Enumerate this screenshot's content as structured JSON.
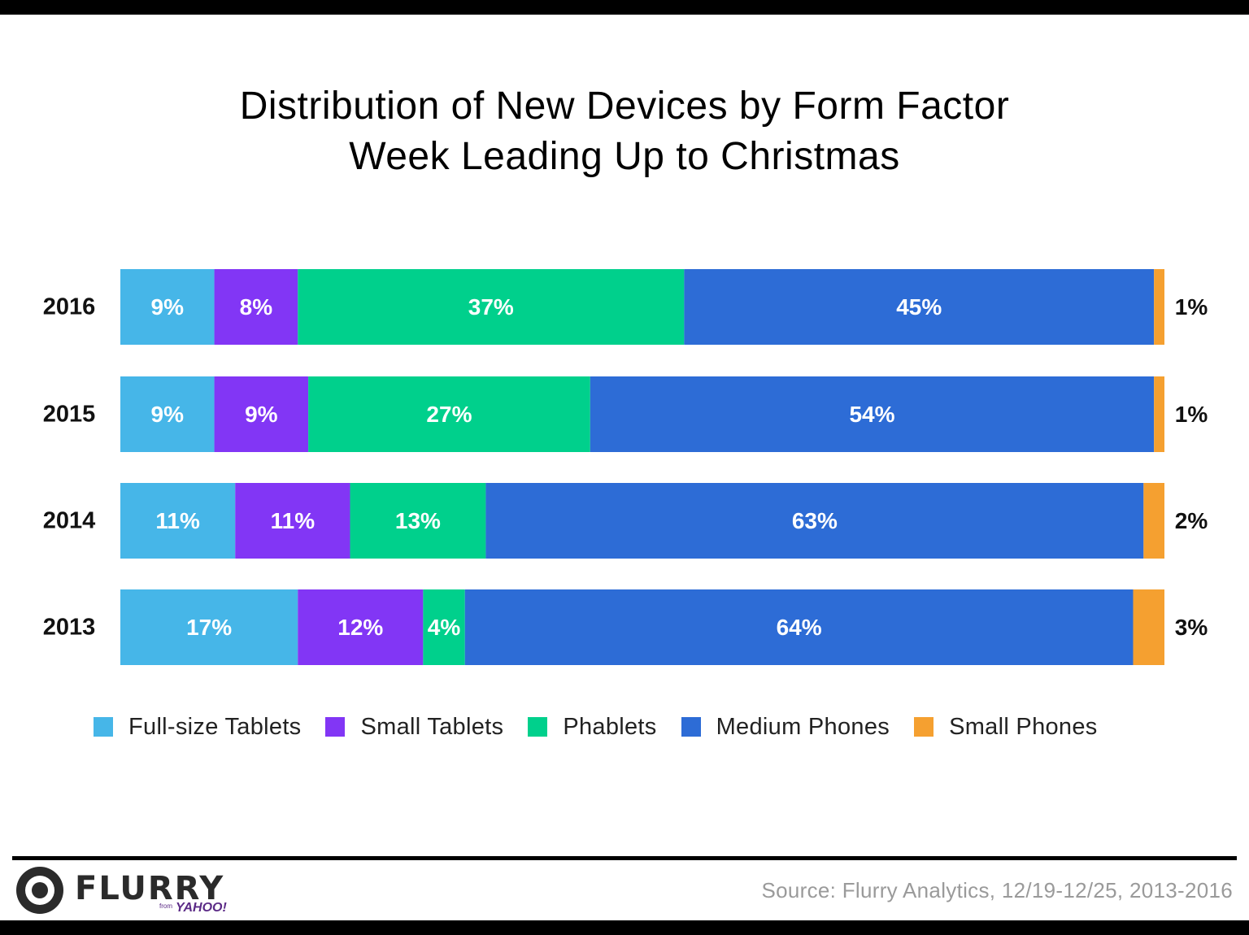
{
  "chart_data": {
    "type": "bar",
    "orientation": "horizontal",
    "stacked": true,
    "title": "Distribution of New Devices by Form Factor",
    "subtitle": "Week Leading Up to Christmas",
    "categories": [
      "2016",
      "2015",
      "2014",
      "2013"
    ],
    "series": [
      {
        "name": "Full-size Tablets",
        "color": "#46b6e8",
        "values": [
          9,
          9,
          11,
          17
        ],
        "labels": [
          "9%",
          "9%",
          "11%",
          "17%"
        ]
      },
      {
        "name": "Small Tablets",
        "color": "#8236f5",
        "values": [
          8,
          9,
          11,
          12
        ],
        "labels": [
          "8%",
          "9%",
          "11%",
          "12%"
        ]
      },
      {
        "name": "Phablets",
        "color": "#00d08c",
        "values": [
          37,
          27,
          13,
          4
        ],
        "labels": [
          "37%",
          "27%",
          "13%",
          "4%"
        ]
      },
      {
        "name": "Medium Phones",
        "color": "#2d6cd6",
        "values": [
          45,
          54,
          63,
          64
        ],
        "labels": [
          "45%",
          "54%",
          "63%",
          "64%"
        ]
      },
      {
        "name": "Small Phones",
        "color": "#f5a030",
        "values": [
          1,
          1,
          2,
          3
        ],
        "labels": [
          "1%",
          "1%",
          "2%",
          "3%"
        ]
      }
    ],
    "xlim": [
      0,
      100
    ],
    "xlabel": "",
    "ylabel": "",
    "grid": false,
    "legend_position": "bottom"
  },
  "source": "Source: Flurry Analytics, 12/19-12/25, 2013-2016",
  "logo": {
    "word": "FLURRY",
    "from": "from",
    "brand": "YAHOO!"
  }
}
